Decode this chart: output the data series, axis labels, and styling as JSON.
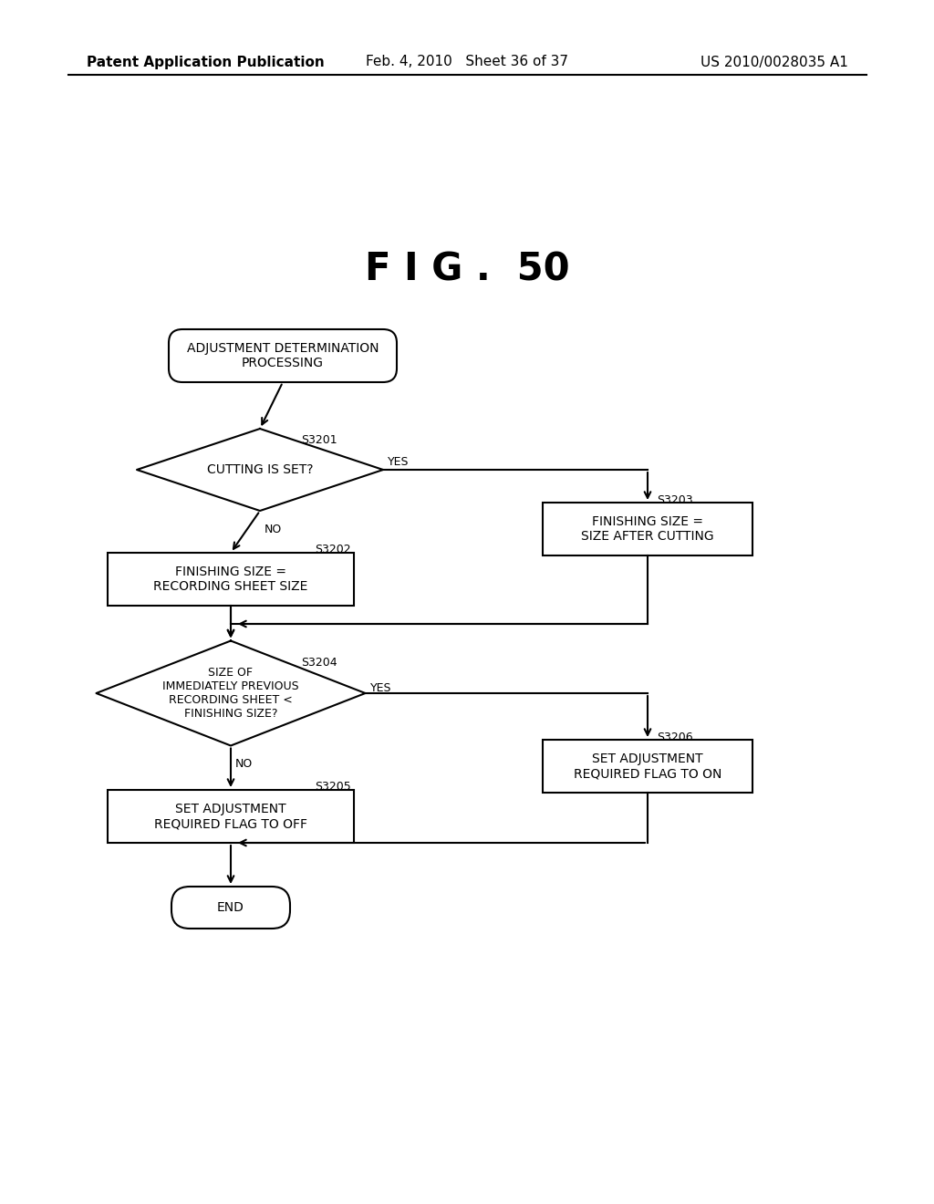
{
  "bg_color": "#ffffff",
  "title": "F I G .  50",
  "title_fontsize": 30,
  "title_fontweight": "bold",
  "header_left": "Patent Application Publication",
  "header_mid": "Feb. 4, 2010   Sheet 36 of 37",
  "header_right": "US 2010/0028035 A1",
  "line_color": "#000000",
  "text_color": "#000000",
  "lw": 1.5
}
